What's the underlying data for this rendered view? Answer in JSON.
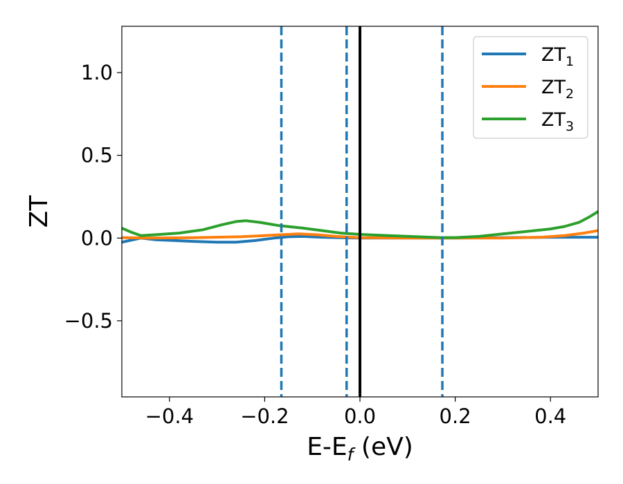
{
  "chart_data": {
    "type": "line",
    "xlabel": {
      "main": "E-E",
      "sub": "f",
      "unit": " (eV)"
    },
    "ylabel": "ZT",
    "xlim": [
      -0.5,
      0.5
    ],
    "ylim": [
      -0.96,
      1.28
    ],
    "xticks": [
      {
        "value": -0.4,
        "label": "−0.4"
      },
      {
        "value": -0.2,
        "label": "−0.2"
      },
      {
        "value": 0.0,
        "label": "0.0"
      },
      {
        "value": 0.2,
        "label": "0.2"
      },
      {
        "value": 0.4,
        "label": "0.4"
      }
    ],
    "yticks": [
      {
        "value": -0.5,
        "label": "−0.5"
      },
      {
        "value": 0.0,
        "label": "0.0"
      },
      {
        "value": 0.5,
        "label": "0.5"
      },
      {
        "value": 1.0,
        "label": "1.0"
      }
    ],
    "grid": false,
    "legend_position": "top-right",
    "vertical_lines": [
      {
        "x": -0.165,
        "style": "dashed",
        "color": "#1f77b4"
      },
      {
        "x": -0.028,
        "style": "dashed",
        "color": "#1f77b4"
      },
      {
        "x": 0.0,
        "style": "solid",
        "color": "#000000"
      },
      {
        "x": 0.173,
        "style": "dashed",
        "color": "#1f77b4"
      }
    ],
    "series": [
      {
        "name": "ZT",
        "name_sub": "1",
        "color": "#1f77b4",
        "points": [
          [
            -0.5,
            -0.025
          ],
          [
            -0.46,
            0.0
          ],
          [
            -0.43,
            -0.01
          ],
          [
            -0.35,
            -0.02
          ],
          [
            -0.3,
            -0.025
          ],
          [
            -0.26,
            -0.025
          ],
          [
            -0.22,
            -0.015
          ],
          [
            -0.18,
            0.0
          ],
          [
            -0.15,
            0.008
          ],
          [
            -0.12,
            0.01
          ],
          [
            -0.08,
            0.005
          ],
          [
            -0.04,
            0.002
          ],
          [
            0.0,
            0.0
          ],
          [
            0.1,
            0.0
          ],
          [
            0.2,
            0.0
          ],
          [
            0.3,
            0.002
          ],
          [
            0.4,
            0.005
          ],
          [
            0.45,
            0.005
          ],
          [
            0.5,
            0.005
          ]
        ]
      },
      {
        "name": "ZT",
        "name_sub": "2",
        "color": "#ff7f0e",
        "points": [
          [
            -0.5,
            0.003
          ],
          [
            -0.45,
            0.0
          ],
          [
            -0.35,
            0.002
          ],
          [
            -0.25,
            0.008
          ],
          [
            -0.18,
            0.018
          ],
          [
            -0.13,
            0.025
          ],
          [
            -0.09,
            0.02
          ],
          [
            -0.05,
            0.01
          ],
          [
            0.0,
            0.002
          ],
          [
            0.1,
            0.0
          ],
          [
            0.2,
            0.0
          ],
          [
            0.3,
            0.0
          ],
          [
            0.38,
            0.005
          ],
          [
            0.43,
            0.015
          ],
          [
            0.47,
            0.03
          ],
          [
            0.5,
            0.045
          ]
        ]
      },
      {
        "name": "ZT",
        "name_sub": "3",
        "color": "#2ca02c",
        "points": [
          [
            -0.5,
            0.06
          ],
          [
            -0.48,
            0.035
          ],
          [
            -0.46,
            0.015
          ],
          [
            -0.43,
            0.02
          ],
          [
            -0.38,
            0.03
          ],
          [
            -0.33,
            0.05
          ],
          [
            -0.29,
            0.08
          ],
          [
            -0.26,
            0.1
          ],
          [
            -0.24,
            0.105
          ],
          [
            -0.21,
            0.095
          ],
          [
            -0.17,
            0.075
          ],
          [
            -0.12,
            0.06
          ],
          [
            -0.08,
            0.045
          ],
          [
            -0.04,
            0.03
          ],
          [
            0.0,
            0.022
          ],
          [
            0.06,
            0.015
          ],
          [
            0.12,
            0.008
          ],
          [
            0.17,
            0.003
          ],
          [
            0.2,
            0.003
          ],
          [
            0.25,
            0.01
          ],
          [
            0.3,
            0.025
          ],
          [
            0.35,
            0.04
          ],
          [
            0.4,
            0.055
          ],
          [
            0.43,
            0.07
          ],
          [
            0.46,
            0.095
          ],
          [
            0.48,
            0.125
          ],
          [
            0.5,
            0.16
          ]
        ]
      }
    ]
  }
}
